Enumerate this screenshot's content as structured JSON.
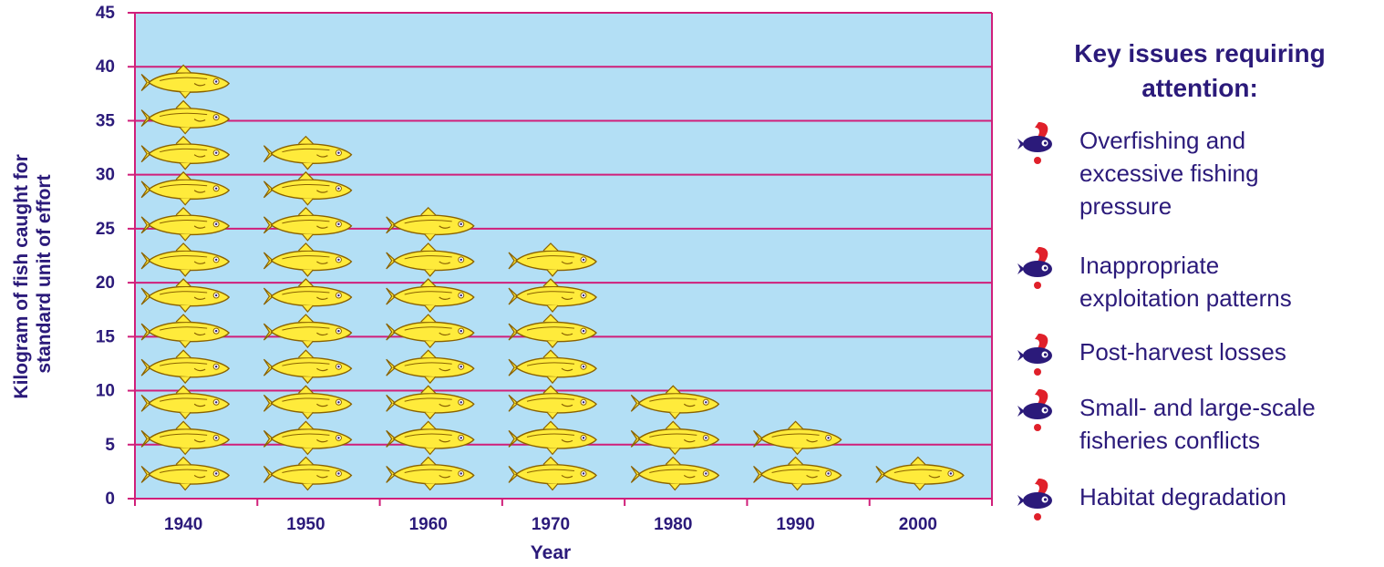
{
  "chart_data": {
    "type": "bar",
    "categories": [
      "1940",
      "1950",
      "1960",
      "1970",
      "1980",
      "1990",
      "2000"
    ],
    "values": [
      41,
      34,
      27,
      24,
      11,
      8,
      1
    ],
    "ylabel": "Kilogram of fish caught for standard unit of effort",
    "xlabel": "Year",
    "ylim": [
      0,
      45
    ],
    "yticks": [
      0,
      5,
      10,
      15,
      20,
      25,
      30,
      35,
      40,
      45
    ],
    "grid": true
  },
  "colors": {
    "plot_background": "#b3dff5",
    "grid_line": "#d01f7a",
    "fish_fill": "#ffeb3b",
    "fish_outline": "#8a6200",
    "text": "#2b1a7a",
    "icon_red": "#e0202a",
    "icon_navy": "#2b1a7a"
  },
  "key": {
    "title_line1": "Key issues requiring",
    "title_line2": "attention:",
    "icon": "fish-warning-icon",
    "items": [
      {
        "line1": "Overfishing and",
        "line2": "excessive fishing",
        "line3": "pressure"
      },
      {
        "line1": "Inappropriate",
        "line2": "exploitation patterns"
      },
      {
        "line1": "Post-harvest losses"
      },
      {
        "line1": "Small- and large-scale",
        "line2": "fisheries conflicts"
      },
      {
        "line1": "Habitat degradation"
      }
    ]
  }
}
